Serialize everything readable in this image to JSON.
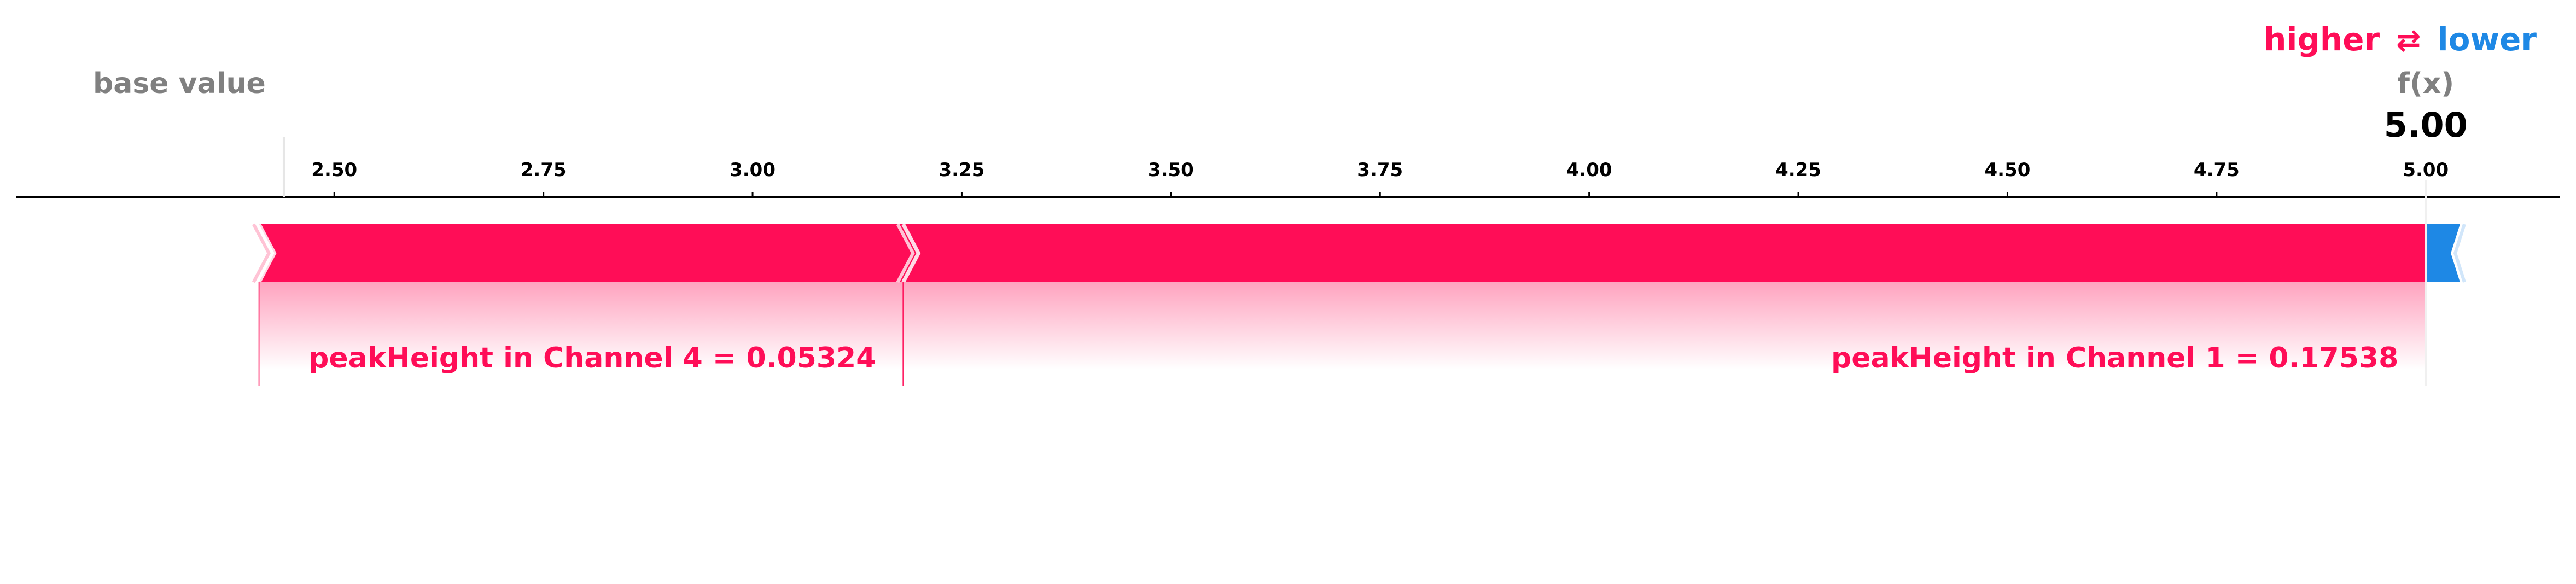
{
  "legend": {
    "higher": "higher",
    "lower": "lower"
  },
  "labels": {
    "base_value": "base value",
    "fx": "f(x)",
    "fx_value": "5.00"
  },
  "colors": {
    "positive": "#ff0d57",
    "negative": "#1e88e5",
    "axis": "#000000",
    "muted": "#808080"
  },
  "chart_data": {
    "type": "force_plot",
    "xlim": [
      2.12,
      5.16
    ],
    "ticks": [
      2.5,
      2.75,
      3.0,
      3.25,
      3.5,
      3.75,
      4.0,
      4.25,
      4.5,
      4.75,
      5.0
    ],
    "tick_labels": [
      "2.50",
      "2.75",
      "3.00",
      "3.25",
      "3.50",
      "3.75",
      "4.00",
      "4.25",
      "4.50",
      "4.75",
      "5.00"
    ],
    "base_value": 2.44,
    "output_value": 5.0,
    "segments": [
      {
        "feature": "peakHeight in Channel 4",
        "value": "0.05324",
        "label": "peakHeight in Channel 4 = 0.05324",
        "start": 2.41,
        "end": 3.18,
        "direction": "higher"
      },
      {
        "feature": "peakHeight in Channel 1",
        "value": "0.17538",
        "label": "peakHeight in Channel 1 = 0.17538",
        "start": 3.18,
        "end": 5.0,
        "direction": "higher"
      },
      {
        "feature": "",
        "value": "",
        "label": "",
        "start": 5.0,
        "end": 5.03,
        "direction": "lower"
      }
    ]
  }
}
